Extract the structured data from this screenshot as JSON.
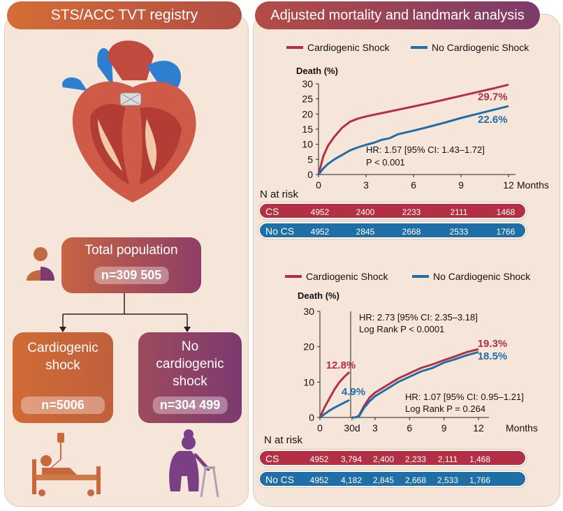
{
  "left": {
    "header": "STS/ACC TVT registry",
    "total": {
      "title": "Total population",
      "n": "n=309 505"
    },
    "cs": {
      "title_line1": "Cardiogenic",
      "title_line2": "shock",
      "n": "n=5006"
    },
    "nocs": {
      "title_line1": "No",
      "title_line2": "cardiogenic",
      "title_line3": "shock",
      "n": "n=304 499"
    }
  },
  "right": {
    "header": "Adjusted mortality and landmark analysis",
    "colors": {
      "cs": "#b32f43",
      "nocs": "#1f6ea6"
    }
  },
  "chart_data": [
    {
      "type": "line",
      "legend": [
        "Cardiogenic Shock",
        "No Cardiogenic Shock"
      ],
      "ylabel": "Death (%)",
      "xlabel": "Months",
      "ylim": [
        0,
        30
      ],
      "yticks": [
        0,
        5,
        10,
        15,
        20,
        25,
        30
      ],
      "xticks": [
        0,
        3,
        6,
        9,
        12
      ],
      "series": [
        {
          "name": "Cardiogenic Shock",
          "x": [
            0,
            0.3,
            0.6,
            1,
            1.5,
            2,
            2.5,
            3,
            4,
            5,
            6,
            7,
            8,
            9,
            10,
            11,
            12
          ],
          "values": [
            0,
            6,
            9.5,
            12.5,
            15.5,
            17.5,
            18.5,
            19.2,
            20.3,
            21.4,
            22.5,
            23.6,
            24.8,
            26,
            27.2,
            28.4,
            29.7
          ]
        },
        {
          "name": "No Cardiogenic Shock",
          "x": [
            0,
            0.3,
            0.6,
            1,
            1.5,
            2,
            2.5,
            3,
            3.5,
            4,
            4.5,
            5,
            6,
            7,
            8,
            9,
            10,
            11,
            12
          ],
          "values": [
            0,
            2,
            3.5,
            5,
            6.5,
            8,
            9,
            9.8,
            10.5,
            11.5,
            12,
            13.3,
            14.5,
            15.8,
            17.2,
            18.7,
            20,
            21.3,
            22.6
          ]
        }
      ],
      "end_labels": {
        "cs": "29.7%",
        "nocs": "22.6%"
      },
      "annotation": {
        "line1": "HR: 1.57 [95% CI: 1.43–1.72]",
        "line2": "P < 0.001"
      },
      "risk_title": "N at risk",
      "risk": {
        "cs": {
          "label": "CS",
          "values": [
            "4952",
            "2400",
            "2233",
            "2111",
            "1468"
          ]
        },
        "nocs": {
          "label": "No CS",
          "values": [
            "4952",
            "2845",
            "2668",
            "2533",
            "1766"
          ]
        }
      }
    },
    {
      "type": "line",
      "legend": [
        "Cardiogenic Shock",
        "No Cardiogenic Shock"
      ],
      "ylabel": "Death (%)",
      "xlabel": "Months",
      "ylim": [
        0,
        30
      ],
      "yticks": [
        0,
        10,
        20,
        30
      ],
      "xtick_labels": [
        "0",
        "30d",
        "3",
        "6",
        "9",
        "12"
      ],
      "landmark_series": [
        {
          "name": "Cardiogenic Shock",
          "x_days": [
            0,
            5,
            10,
            15,
            20,
            25,
            30
          ],
          "values": [
            0,
            3,
            5.5,
            8,
            10,
            11.5,
            12.8
          ]
        },
        {
          "name": "No Cardiogenic Shock",
          "x_days": [
            0,
            5,
            10,
            15,
            20,
            25,
            30
          ],
          "values": [
            0,
            1,
            2,
            2.8,
            3.5,
            4.2,
            4.9
          ]
        }
      ],
      "series": [
        {
          "name": "Cardiogenic Shock",
          "x": [
            1,
            1.3,
            1.6,
            2,
            2.5,
            3,
            4,
            5,
            6,
            7,
            8,
            9,
            10,
            11,
            12
          ],
          "values": [
            0,
            0,
            0.5,
            3,
            5.5,
            7,
            9,
            11,
            12.5,
            14,
            15,
            16.2,
            17.3,
            18.5,
            19.3
          ]
        },
        {
          "name": "No Cardiogenic Shock",
          "x": [
            1,
            1.3,
            1.6,
            2,
            2.5,
            3,
            4,
            5,
            6,
            7,
            8,
            9,
            10,
            11,
            12
          ],
          "values": [
            0,
            0,
            0.3,
            2.5,
            4.5,
            6,
            8,
            10,
            11.5,
            13,
            14,
            15.5,
            16.5,
            17.6,
            18.5
          ]
        }
      ],
      "landmark_labels": {
        "cs": "12.8%",
        "nocs": "4.9%"
      },
      "end_labels": {
        "cs": "19.3%",
        "nocs": "18.5%"
      },
      "annotation_top": {
        "line1": "HR: 2.73 [95% CI: 2.35–3.18]",
        "line2": "Log Rank P < 0.0001"
      },
      "annotation_bottom": {
        "line1": "HR: 1.07 [95% CI: 0.95–1.21]",
        "line2": "Log Rank P = 0.264"
      },
      "risk_title": "N at risk",
      "risk": {
        "cs": {
          "label": "CS",
          "values": [
            "4952",
            "3,794",
            "2,400",
            "2,233",
            "2,111",
            "1,468"
          ]
        },
        "nocs": {
          "label": "No CS",
          "values": [
            "4952",
            "4,182",
            "2,845",
            "2,668",
            "2,533",
            "1,766"
          ]
        }
      }
    }
  ]
}
